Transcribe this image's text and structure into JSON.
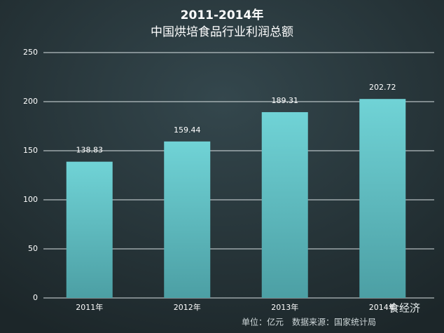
{
  "chart_data": {
    "type": "bar",
    "title": "2011-2014年",
    "subtitle": "中国烘培食品行业利润总额",
    "categories": [
      "2011年",
      "2012年",
      "2013年",
      "2014年"
    ],
    "values": [
      138.83,
      159.44,
      189.31,
      202.72
    ],
    "color": "#66c9cd",
    "ylim": [
      0,
      250
    ],
    "yticks": [
      0,
      50,
      100,
      150,
      200,
      250
    ],
    "grid": true,
    "source": "单位：亿元　数据来源：国家统计局",
    "watermark": "食经济"
  }
}
